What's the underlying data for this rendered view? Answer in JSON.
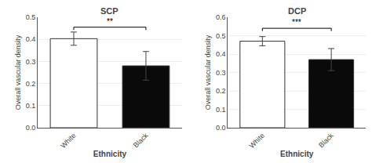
{
  "chart_data": [
    {
      "type": "bar",
      "title": "SCP",
      "xlabel": "Ethnicity",
      "ylabel": "Overall vascular density",
      "categories": [
        "White",
        "Black"
      ],
      "values": [
        0.403,
        0.28
      ],
      "errors": [
        0.03,
        0.065
      ],
      "colors": [
        "#ffffff",
        "#0a0a0a"
      ],
      "ylim": [
        0,
        0.5
      ],
      "yticks": [
        {
          "value": 0.0,
          "label": "0.0"
        },
        0.1,
        0.2,
        0.3,
        0.4,
        0.5
      ],
      "annotations": [
        {
          "text": "**",
          "from": "White",
          "to": "Black",
          "y": 0.455
        }
      ]
    },
    {
      "type": "bar",
      "title": "DCP",
      "xlabel": "Ethnicity",
      "ylabel": "Overall vascular density",
      "categories": [
        "White",
        "Black"
      ],
      "values": [
        0.47,
        0.37
      ],
      "errors": [
        0.025,
        0.06
      ],
      "colors": [
        "#ffffff",
        "#0a0a0a"
      ],
      "ylim": [
        0,
        0.6
      ],
      "yticks": [
        {
          "value": 0.0,
          "label": "0.0"
        },
        0.1,
        0.2,
        0.3,
        0.4,
        0.5,
        0.6
      ],
      "annotations": [
        {
          "text": "***",
          "from": "White",
          "to": "Black",
          "y": 0.54
        }
      ]
    }
  ]
}
